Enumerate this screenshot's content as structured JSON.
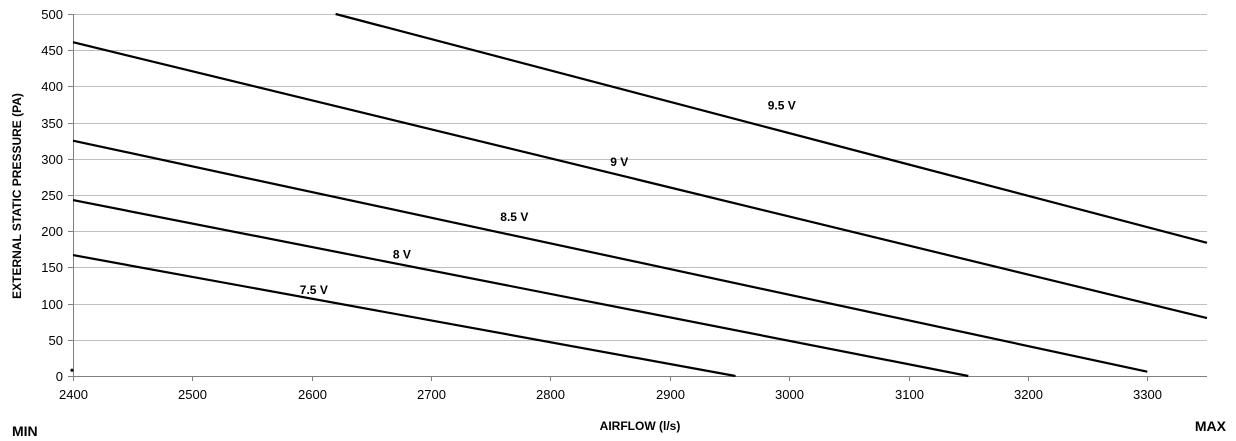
{
  "chart_data": {
    "type": "line",
    "title": "",
    "xlabel": "AIRFLOW (l/s)",
    "ylabel": "EXTERNAL STATIC PRESSURE (PA)",
    "xlim": [
      2400,
      3350
    ],
    "ylim": [
      0,
      500
    ],
    "x_ticks": [
      2400,
      2500,
      2600,
      2700,
      2800,
      2900,
      3000,
      3100,
      3200,
      3300
    ],
    "y_ticks": [
      0,
      50,
      100,
      150,
      200,
      250,
      300,
      350,
      400,
      450,
      500
    ],
    "grid": "horizontal",
    "legend": "none",
    "line_color": "#000000",
    "grid_color": "#bfbfbf",
    "min_label": "MIN",
    "max_label": "MAX",
    "series": [
      {
        "name": "7.5  V",
        "points": [
          [
            2400,
            167
          ],
          [
            2955,
            0
          ]
        ],
        "label_at": [
          2590,
          113
        ]
      },
      {
        "name": "8 V",
        "points": [
          [
            2400,
            243
          ],
          [
            3150,
            0
          ]
        ],
        "label_at": [
          2668,
          162
        ]
      },
      {
        "name": "8.5 V",
        "points": [
          [
            2400,
            325
          ],
          [
            3300,
            6
          ]
        ],
        "label_at": [
          2758,
          214
        ]
      },
      {
        "name": "9 V",
        "points": [
          [
            2400,
            461
          ],
          [
            3350,
            80
          ]
        ],
        "label_at": [
          2850,
          290
        ]
      },
      {
        "name": "9.5 V",
        "points": [
          [
            2620,
            500
          ],
          [
            3350,
            184
          ]
        ],
        "label_at": [
          2982,
          368
        ]
      }
    ],
    "marker": {
      "x": 2400,
      "y": 8
    }
  }
}
